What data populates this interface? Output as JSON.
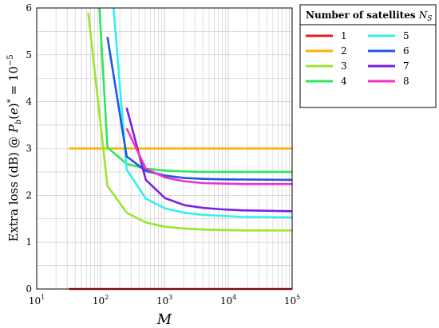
{
  "chart_data": {
    "type": "line",
    "x_scale": "log",
    "xlim": [
      10,
      100000
    ],
    "ylim": [
      0,
      6
    ],
    "grid": true,
    "xlabel": "M",
    "ylabel": "Extra loss (dB) @ P_b(e)* = 10^-5",
    "x_tick_labels": [
      "10",
      "10",
      "10",
      "10",
      "10"
    ],
    "x_tick_exponents": [
      "1",
      "2",
      "3",
      "4",
      "5"
    ],
    "y_tick_labels": [
      "0",
      "1",
      "2",
      "3",
      "4",
      "5",
      "6"
    ],
    "legend": {
      "title": "Number of satellites",
      "title_symbol": "N",
      "title_subscript": "S",
      "placement": "right, outside plot",
      "columns": 2
    },
    "series": [
      {
        "name": "1",
        "color": "#e41a1c",
        "points": [
          [
            32,
            0.0
          ],
          [
            100000,
            0.0
          ]
        ]
      },
      {
        "name": "2",
        "color": "#ffb000",
        "points": [
          [
            32,
            3.0
          ],
          [
            100000,
            3.0
          ]
        ]
      },
      {
        "name": "3",
        "color": "#99e62e",
        "points": [
          [
            64,
            5.9
          ],
          [
            128,
            2.2
          ],
          [
            256,
            1.63
          ],
          [
            512,
            1.42
          ],
          [
            1024,
            1.33
          ],
          [
            2048,
            1.29
          ],
          [
            4096,
            1.27
          ],
          [
            8192,
            1.26
          ],
          [
            16384,
            1.25
          ],
          [
            100000,
            1.25
          ]
        ]
      },
      {
        "name": "4",
        "color": "#2ee65c",
        "points": [
          [
            96,
            6.0
          ],
          [
            128,
            3.02
          ],
          [
            256,
            2.67
          ],
          [
            512,
            2.57
          ],
          [
            1024,
            2.53
          ],
          [
            2048,
            2.51
          ],
          [
            4096,
            2.5
          ],
          [
            8192,
            2.5
          ],
          [
            100000,
            2.5
          ]
        ]
      },
      {
        "name": "5",
        "color": "#33f0f0",
        "points": [
          [
            160,
            6.0
          ],
          [
            256,
            2.55
          ],
          [
            512,
            1.93
          ],
          [
            1024,
            1.72
          ],
          [
            2048,
            1.63
          ],
          [
            4096,
            1.58
          ],
          [
            8192,
            1.56
          ],
          [
            16384,
            1.54
          ],
          [
            100000,
            1.53
          ]
        ]
      },
      {
        "name": "6",
        "color": "#1f57e6",
        "points": [
          [
            128,
            5.38
          ],
          [
            256,
            2.83
          ],
          [
            512,
            2.52
          ],
          [
            1024,
            2.42
          ],
          [
            2048,
            2.37
          ],
          [
            4096,
            2.35
          ],
          [
            8192,
            2.34
          ],
          [
            100000,
            2.33
          ]
        ]
      },
      {
        "name": "7",
        "color": "#7a1fe6",
        "points": [
          [
            256,
            3.87
          ],
          [
            512,
            2.33
          ],
          [
            1024,
            1.94
          ],
          [
            2048,
            1.79
          ],
          [
            4096,
            1.73
          ],
          [
            8192,
            1.7
          ],
          [
            16384,
            1.68
          ],
          [
            100000,
            1.66
          ]
        ]
      },
      {
        "name": "8",
        "color": "#f032c8",
        "points": [
          [
            256,
            3.43
          ],
          [
            512,
            2.57
          ],
          [
            1024,
            2.38
          ],
          [
            2048,
            2.3
          ],
          [
            4096,
            2.26
          ],
          [
            8192,
            2.25
          ],
          [
            16384,
            2.24
          ],
          [
            100000,
            2.24
          ]
        ]
      }
    ]
  }
}
